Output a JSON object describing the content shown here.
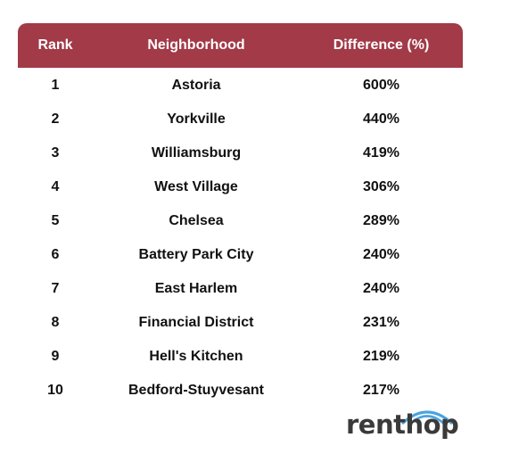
{
  "chart_data": {
    "type": "table",
    "columns": [
      "Rank",
      "Neighborhood",
      "Difference (%)"
    ],
    "rows": [
      {
        "rank": "1",
        "neighborhood": "Astoria",
        "difference": "600%"
      },
      {
        "rank": "2",
        "neighborhood": "Yorkville",
        "difference": "440%"
      },
      {
        "rank": "3",
        "neighborhood": "Williamsburg",
        "difference": "419%"
      },
      {
        "rank": "4",
        "neighborhood": "West Village",
        "difference": "306%"
      },
      {
        "rank": "5",
        "neighborhood": "Chelsea",
        "difference": "289%"
      },
      {
        "rank": "6",
        "neighborhood": "Battery Park City",
        "difference": "240%"
      },
      {
        "rank": "7",
        "neighborhood": "East Harlem",
        "difference": "240%"
      },
      {
        "rank": "8",
        "neighborhood": "Financial District",
        "difference": "231%"
      },
      {
        "rank": "9",
        "neighborhood": "Hell's Kitchen",
        "difference": "219%"
      },
      {
        "rank": "10",
        "neighborhood": "Bedford-Stuyvesant",
        "difference": "217%"
      }
    ],
    "header_color": "#a23a48"
  },
  "logo": {
    "text": "renthop",
    "arc_color": "#4aa3df",
    "icon": "renthop-arc-icon"
  }
}
